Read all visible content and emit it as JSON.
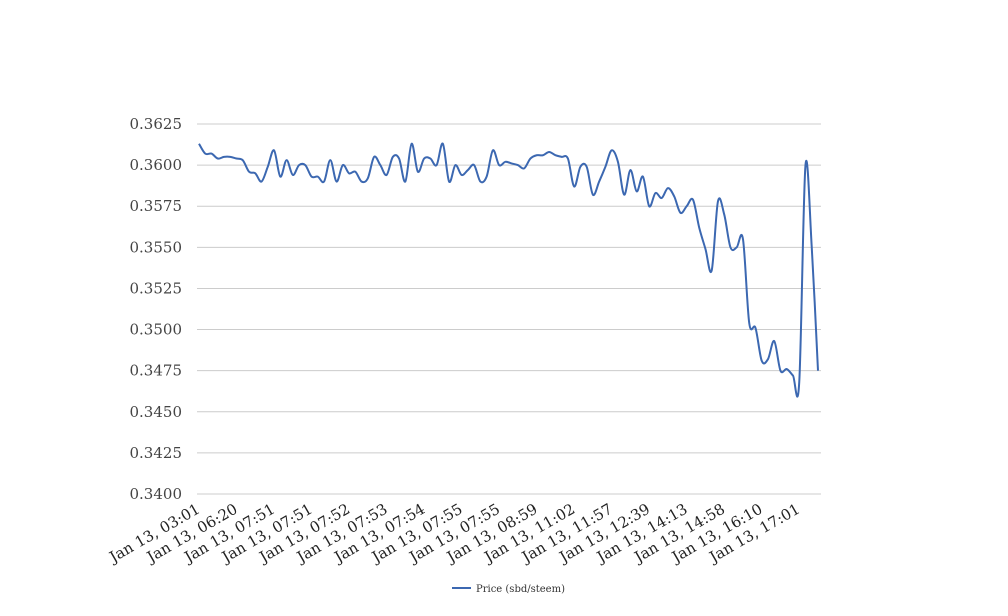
{
  "chart_data": {
    "type": "line",
    "title": "",
    "xlabel": "",
    "ylabel": "",
    "ylim": [
      0.34,
      0.3625
    ],
    "yticks": [
      "0.3400",
      "0.3425",
      "0.3450",
      "0.3475",
      "0.3500",
      "0.3525",
      "0.3550",
      "0.3575",
      "0.3600",
      "0.3625"
    ],
    "grid": true,
    "legend_position": "bottom",
    "x_tick_labels": [
      "Jan 13, 03:01",
      "Jan 13, 06:20",
      "Jan 13, 07:51",
      "Jan 13, 07:51",
      "Jan 13, 07:52",
      "Jan 13, 07:53",
      "Jan 13, 07:54",
      "Jan 13, 07:55",
      "Jan 13, 07:55",
      "Jan 13, 08:59",
      "Jan 13, 11:02",
      "Jan 13, 11:57",
      "Jan 13, 12:39",
      "Jan 13, 14:13",
      "Jan 13, 14:58",
      "Jan 13, 16:10",
      "Jan 13, 17:01"
    ],
    "series": [
      {
        "name": "Price (sbd/steem)",
        "color": "#3c68b1",
        "values": [
          0.3613,
          0.3607,
          0.3607,
          0.3604,
          0.3605,
          0.3605,
          0.3604,
          0.3603,
          0.3596,
          0.3595,
          0.359,
          0.3599,
          0.3609,
          0.3593,
          0.3603,
          0.3594,
          0.36,
          0.36,
          0.3593,
          0.3593,
          0.359,
          0.3603,
          0.359,
          0.36,
          0.3595,
          0.3596,
          0.359,
          0.3592,
          0.3605,
          0.36,
          0.3594,
          0.3605,
          0.3604,
          0.359,
          0.3613,
          0.3596,
          0.3604,
          0.3604,
          0.36,
          0.3613,
          0.359,
          0.36,
          0.3594,
          0.3597,
          0.36,
          0.359,
          0.3593,
          0.3609,
          0.36,
          0.3602,
          0.3601,
          0.36,
          0.3598,
          0.3604,
          0.3606,
          0.3606,
          0.3608,
          0.3606,
          0.3605,
          0.3604,
          0.3587,
          0.3599,
          0.3599,
          0.3582,
          0.359,
          0.3599,
          0.3609,
          0.3602,
          0.3582,
          0.3597,
          0.3584,
          0.3593,
          0.3575,
          0.3583,
          0.358,
          0.3586,
          0.3581,
          0.3571,
          0.3575,
          0.3579,
          0.3562,
          0.3549,
          0.3536,
          0.3578,
          0.357,
          0.355,
          0.355,
          0.3555,
          0.3504,
          0.3501,
          0.3481,
          0.3482,
          0.3493,
          0.3475,
          0.3476,
          0.3472,
          0.3468,
          0.36,
          0.355,
          0.3475
        ]
      }
    ]
  }
}
